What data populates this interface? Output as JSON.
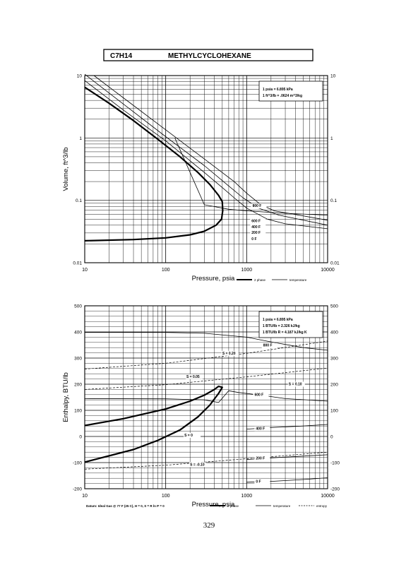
{
  "header": {
    "formula": "C7H14",
    "name": "METHYLCYCLOHEXANE"
  },
  "footer": {
    "page_number": "329"
  },
  "chart_data": [
    {
      "type": "line",
      "title": "",
      "xlabel": "Pressure,  psia",
      "ylabel": "Volume, ft^3/lb",
      "xscale": "log",
      "yscale": "log",
      "xlim": [
        10,
        10000
      ],
      "ylim": [
        0.01,
        10
      ],
      "x_tick_labels": [
        "10",
        "100",
        "1000",
        "10000"
      ],
      "y_tick_labels": [
        "0.01",
        "0.1",
        "1",
        "10"
      ],
      "grid": true,
      "unit_box": [
        "1 psia  =  6.895 kPa",
        "1 ft^3/lb  =  .0624 m^3/kg"
      ],
      "legend": {
        "position": "below-right",
        "entries": [
          "2 phase",
          "temperature"
        ]
      },
      "series": [
        {
          "name": "2 phase",
          "style": "heavy",
          "points": [
            [
              10,
              6.5
            ],
            [
              20,
              3.6
            ],
            [
              40,
              1.9
            ],
            [
              80,
              0.95
            ],
            [
              150,
              0.5
            ],
            [
              250,
              0.28
            ],
            [
              350,
              0.18
            ],
            [
              450,
              0.12
            ],
            [
              500,
              0.095
            ],
            [
              506,
              0.068
            ],
            [
              490,
              0.05
            ],
            [
              420,
              0.04
            ],
            [
              300,
              0.032
            ],
            [
              200,
              0.028
            ],
            [
              100,
              0.025
            ],
            [
              40,
              0.0235
            ],
            [
              10,
              0.0225
            ]
          ]
        },
        {
          "name": "",
          "style": "light",
          "points": [
            [
              10,
              8.3
            ],
            [
              30,
              2.8
            ],
            [
              100,
              0.9
            ],
            [
              300,
              0.28
            ],
            [
              500,
              0.16
            ],
            [
              700,
              0.11
            ],
            [
              1000,
              0.075
            ],
            [
              1800,
              0.05
            ],
            [
              3000,
              0.042
            ],
            [
              10000,
              0.035
            ]
          ]
        },
        {
          "name": "",
          "style": "light",
          "points": [
            [
              10,
              10.5
            ],
            [
              30,
              3.5
            ],
            [
              100,
              1.05
            ],
            [
              300,
              0.36
            ],
            [
              600,
              0.17
            ],
            [
              900,
              0.11
            ],
            [
              1400,
              0.075
            ],
            [
              2500,
              0.058
            ],
            [
              10000,
              0.04
            ]
          ]
        },
        {
          "name": "",
          "style": "light",
          "points": [
            [
              13,
              10
            ],
            [
              30,
              4.4
            ],
            [
              100,
              1.35
            ],
            [
              300,
              0.46
            ],
            [
              700,
              0.2
            ],
            [
              1000,
              0.13
            ],
            [
              1500,
              0.085
            ],
            [
              2200,
              0.068
            ],
            [
              10000,
              0.048
            ]
          ]
        },
        {
          "name": "",
          "style": "light",
          "points": [
            [
              130,
              1.0
            ],
            [
              140,
              0.8
            ],
            [
              300,
              0.085
            ],
            [
              600,
              0.072
            ],
            [
              1000,
              0.068
            ],
            [
              3000,
              0.062
            ],
            [
              10000,
              0.058
            ]
          ]
        }
      ],
      "isotherm_labels": [
        {
          "text": "800 F",
          "x": 1180,
          "y": 0.078
        },
        {
          "text": "600 F",
          "x": 1150,
          "y": 0.045
        },
        {
          "text": "400 F",
          "x": 1150,
          "y": 0.036
        },
        {
          "text": "200 F",
          "x": 1150,
          "y": 0.029
        },
        {
          "text": "0 F",
          "x": 1150,
          "y": 0.023
        }
      ]
    },
    {
      "type": "line",
      "title": "",
      "xlabel": "Pressure,  psia",
      "ylabel": "Enthalpy, BTU/lb",
      "xscale": "log",
      "yscale": "linear",
      "xlim": [
        10,
        10000
      ],
      "ylim": [
        -200,
        500
      ],
      "x_tick_labels": [
        "10",
        "100",
        "1000",
        "10000"
      ],
      "y_tick_labels": [
        "-200",
        "-100",
        "0",
        "100",
        "200",
        "300",
        "400",
        "500"
      ],
      "grid": true,
      "unit_box": [
        "1 psia  =  6.895 kPa",
        "1 BTU/lb  =  2.326 kJ/kg",
        "1 BTU/lb R  =  4.187 kJ/kg K"
      ],
      "datum_note": "Datum: Ideal Gas @ 77 F (25 C),  H = 0,  S = R ln P = 0",
      "legend": {
        "position": "below-right",
        "entries": [
          "2 phase",
          "temperature",
          "entropy"
        ]
      },
      "series": [
        {
          "name": "2 phase",
          "style": "heavy",
          "points": [
            [
              10,
              42
            ],
            [
              30,
              68
            ],
            [
              100,
              105
            ],
            [
              200,
              135
            ],
            [
              300,
              158
            ],
            [
              400,
              180
            ],
            [
              450,
              192
            ],
            [
              500,
              188
            ],
            [
              450,
              165
            ],
            [
              350,
              120
            ],
            [
              250,
              75
            ],
            [
              150,
              25
            ],
            [
              80,
              -15
            ],
            [
              40,
              -50
            ],
            [
              10,
              -98
            ]
          ]
        },
        {
          "name": "",
          "style": "light",
          "points": [
            [
              10,
              398
            ],
            [
              100,
              398
            ],
            [
              300,
              395
            ],
            [
              1000,
              380
            ],
            [
              2000,
              362
            ],
            [
              5000,
              340
            ],
            [
              10000,
              330
            ]
          ]
        },
        {
          "name": "",
          "style": "light",
          "points": [
            [
              10,
              145
            ],
            [
              100,
              144
            ],
            [
              300,
              140
            ],
            [
              450,
              130
            ],
            [
              600,
              175
            ],
            [
              800,
              168
            ],
            [
              1500,
              158
            ],
            [
              3000,
              145
            ],
            [
              10000,
              135
            ]
          ]
        },
        {
          "name": "",
          "style": "light",
          "points": [
            [
              1000,
              28
            ],
            [
              2000,
              34
            ],
            [
              5000,
              40
            ],
            [
              10000,
              46
            ]
          ]
        },
        {
          "name": "",
          "style": "light",
          "points": [
            [
              1000,
              -88
            ],
            [
              2000,
              -82
            ],
            [
              5000,
              -75
            ],
            [
              10000,
              -70
            ]
          ]
        },
        {
          "name": "",
          "style": "light",
          "points": [
            [
              1000,
              -175
            ],
            [
              2000,
              -172
            ],
            [
              5000,
              -165
            ],
            [
              10000,
              -158
            ]
          ]
        },
        {
          "name": "",
          "style": "dashed",
          "points": [
            [
              10,
              258
            ],
            [
              100,
              280
            ],
            [
              1000,
              318
            ],
            [
              10000,
              365
            ]
          ]
        },
        {
          "name": "",
          "style": "dashed",
          "points": [
            [
              10,
              180
            ],
            [
              100,
              198
            ],
            [
              1000,
              228
            ],
            [
              10000,
              262
            ]
          ]
        },
        {
          "name": "",
          "style": "dashed",
          "points": [
            [
              10,
              -125
            ],
            [
              100,
              -110
            ],
            [
              1000,
              -85
            ],
            [
              10000,
              -60
            ]
          ]
        }
      ],
      "isotherm_labels": [
        {
          "text": "800 F",
          "x": 1600,
          "y": 344
        },
        {
          "text": "600 F",
          "x": 1250,
          "y": 156
        },
        {
          "text": "400 F",
          "x": 1300,
          "y": 26
        },
        {
          "text": "200 F",
          "x": 1300,
          "y": -88
        },
        {
          "text": "0 F",
          "x": 1300,
          "y": -177
        }
      ],
      "entropy_labels": [
        {
          "text": "S = 0.20",
          "x": 500,
          "y": 314
        },
        {
          "text": "S = 0.10",
          "x": 3300,
          "y": 196
        },
        {
          "text": "S = 0.05",
          "x": 180,
          "y": 225
        },
        {
          "text": "S = 0",
          "x": 170,
          "y": 0
        },
        {
          "text": "S = -0.10",
          "x": 200,
          "y": -112
        }
      ]
    }
  ]
}
